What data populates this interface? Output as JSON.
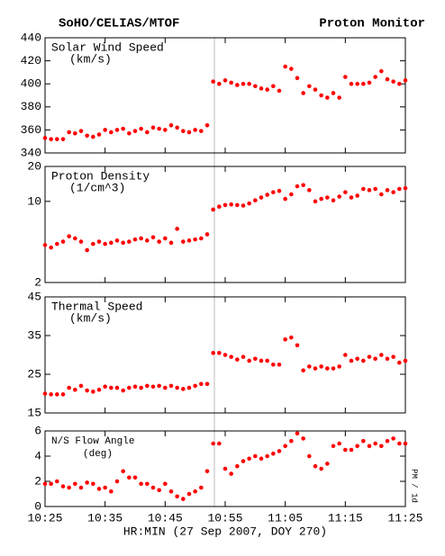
{
  "header_left": "SoHO/CELIAS/MTOF",
  "header_right": "Proton Monitor",
  "xlabel": "HR:MIN (27 Sep 2007, DOY 270)",
  "side_note": "PM / 1d",
  "chart_data": [
    {
      "type": "scatter",
      "title": "Solar Wind Speed",
      "unit": "(km/s)",
      "color": "#ff0000",
      "x": [
        "10:25",
        "10:26",
        "10:27",
        "10:28",
        "10:29",
        "10:30",
        "10:31",
        "10:32",
        "10:33",
        "10:34",
        "10:35",
        "10:36",
        "10:37",
        "10:38",
        "10:39",
        "10:40",
        "10:41",
        "10:42",
        "10:43",
        "10:44",
        "10:45",
        "10:46",
        "10:47",
        "10:48",
        "10:49",
        "10:50",
        "10:51",
        "10:52",
        "10:53",
        "10:54",
        "10:55",
        "10:56",
        "10:57",
        "10:58",
        "10:59",
        "11:00",
        "11:01",
        "11:02",
        "11:03",
        "11:04",
        "11:05",
        "11:06",
        "11:07",
        "11:08",
        "11:09",
        "11:10",
        "11:11",
        "11:12",
        "11:13",
        "11:14",
        "11:15",
        "11:16",
        "11:17",
        "11:18",
        "11:19",
        "11:20",
        "11:21",
        "11:22",
        "11:23",
        "11:24",
        "11:25"
      ],
      "values": [
        353,
        352,
        352,
        352,
        358,
        357,
        359,
        355,
        354,
        356,
        360,
        358,
        360,
        361,
        357,
        359,
        361,
        358,
        362,
        361,
        360,
        364,
        362,
        359,
        358,
        360,
        359,
        364,
        402,
        400,
        403,
        401,
        399,
        400,
        400,
        398,
        396,
        395,
        398,
        394,
        415,
        413,
        405,
        392,
        398,
        395,
        390,
        388,
        392,
        388,
        406,
        400,
        400,
        400,
        401,
        406,
        411,
        404,
        402,
        400,
        403
      ],
      "xlim": [
        "10:25",
        "11:25"
      ],
      "xticks": [
        "10:25",
        "10:35",
        "10:45",
        "10:55",
        "11:05",
        "11:15",
        "11:25"
      ],
      "ylim": [
        340,
        440
      ],
      "yticks": [
        340,
        360,
        380,
        400,
        420,
        440
      ]
    },
    {
      "type": "scatter",
      "title": "Proton Density",
      "unit": "(1/cm^3)",
      "color": "#ff0000",
      "log": true,
      "x": [
        "10:25",
        "10:26",
        "10:27",
        "10:28",
        "10:29",
        "10:30",
        "10:31",
        "10:32",
        "10:33",
        "10:34",
        "10:35",
        "10:36",
        "10:37",
        "10:38",
        "10:39",
        "10:40",
        "10:41",
        "10:42",
        "10:43",
        "10:44",
        "10:45",
        "10:46",
        "10:47",
        "10:48",
        "10:49",
        "10:50",
        "10:51",
        "10:52",
        "10:53",
        "10:54",
        "10:55",
        "10:56",
        "10:57",
        "10:58",
        "10:59",
        "11:00",
        "11:01",
        "11:02",
        "11:03",
        "11:04",
        "11:05",
        "11:06",
        "11:07",
        "11:08",
        "11:09",
        "11:10",
        "11:11",
        "11:12",
        "11:13",
        "11:14",
        "11:15",
        "11:16",
        "11:17",
        "11:18",
        "11:19",
        "11:20",
        "11:21",
        "11:22",
        "11:23",
        "11:24",
        "11:25"
      ],
      "values": [
        4.2,
        4.0,
        4.3,
        4.5,
        5.0,
        4.8,
        4.5,
        3.8,
        4.3,
        4.5,
        4.3,
        4.4,
        4.6,
        4.4,
        4.5,
        4.7,
        4.8,
        4.6,
        4.9,
        4.5,
        4.8,
        4.4,
        5.8,
        4.5,
        4.6,
        4.7,
        4.8,
        5.2,
        8.5,
        9.0,
        9.3,
        9.4,
        9.3,
        9.2,
        9.6,
        10.2,
        10.8,
        11.4,
        12.0,
        12.3,
        10.5,
        11.5,
        13.5,
        13.8,
        12.5,
        10.0,
        10.5,
        10.8,
        10.2,
        11.0,
        12.0,
        10.8,
        11.2,
        12.8,
        12.5,
        12.8,
        11.5,
        12.5,
        12.0,
        12.8,
        13.0
      ],
      "xlim": [
        "10:25",
        "11:25"
      ],
      "xticks": [
        "10:25",
        "10:35",
        "10:45",
        "10:55",
        "11:05",
        "11:15",
        "11:25"
      ],
      "ylim": [
        2,
        20
      ],
      "yticks": [
        2,
        10,
        20
      ]
    },
    {
      "type": "scatter",
      "title": "Thermal Speed",
      "unit": "(km/s)",
      "color": "#ff0000",
      "x": [
        "10:25",
        "10:26",
        "10:27",
        "10:28",
        "10:29",
        "10:30",
        "10:31",
        "10:32",
        "10:33",
        "10:34",
        "10:35",
        "10:36",
        "10:37",
        "10:38",
        "10:39",
        "10:40",
        "10:41",
        "10:42",
        "10:43",
        "10:44",
        "10:45",
        "10:46",
        "10:47",
        "10:48",
        "10:49",
        "10:50",
        "10:51",
        "10:52",
        "10:53",
        "10:54",
        "10:55",
        "10:56",
        "10:57",
        "10:58",
        "10:59",
        "11:00",
        "11:01",
        "11:02",
        "11:03",
        "11:04",
        "11:05",
        "11:06",
        "11:07",
        "11:08",
        "11:09",
        "11:10",
        "11:11",
        "11:12",
        "11:13",
        "11:14",
        "11:15",
        "11:16",
        "11:17",
        "11:18",
        "11:19",
        "11:20",
        "11:21",
        "11:22",
        "11:23",
        "11:24",
        "11:25"
      ],
      "values": [
        20,
        19.8,
        19.8,
        19.8,
        21.5,
        21,
        22,
        20.8,
        20.5,
        21,
        21.8,
        21.5,
        21.5,
        20.8,
        21.5,
        21.8,
        21.5,
        22,
        21.8,
        22,
        21.5,
        22,
        21.5,
        21.2,
        21.5,
        22,
        22.5,
        22.5,
        30.5,
        30.5,
        30,
        29.5,
        28.8,
        29.5,
        28.5,
        29,
        28.5,
        28.5,
        27.5,
        27.5,
        34,
        34.5,
        32.5,
        26,
        27,
        26.5,
        27,
        26.5,
        26.5,
        27,
        30,
        28.5,
        29,
        28.5,
        29.5,
        29,
        30,
        29,
        29.5,
        28,
        28.5
      ],
      "xlim": [
        "10:25",
        "11:25"
      ],
      "xticks": [
        "10:25",
        "10:35",
        "10:45",
        "10:55",
        "11:05",
        "11:15",
        "11:25"
      ],
      "ylim": [
        15,
        45
      ],
      "yticks": [
        15,
        25,
        35,
        45
      ]
    },
    {
      "type": "scatter",
      "title": "N/S Flow Angle",
      "unit": "(deg)",
      "color": "#ff0000",
      "x": [
        "10:25",
        "10:26",
        "10:27",
        "10:28",
        "10:29",
        "10:30",
        "10:31",
        "10:32",
        "10:33",
        "10:34",
        "10:35",
        "10:36",
        "10:37",
        "10:38",
        "10:39",
        "10:40",
        "10:41",
        "10:42",
        "10:43",
        "10:44",
        "10:45",
        "10:46",
        "10:47",
        "10:48",
        "10:49",
        "10:50",
        "10:51",
        "10:52",
        "10:53",
        "10:54",
        "10:55",
        "10:56",
        "10:57",
        "10:58",
        "10:59",
        "11:00",
        "11:01",
        "11:02",
        "11:03",
        "11:04",
        "11:05",
        "11:06",
        "11:07",
        "11:08",
        "11:09",
        "11:10",
        "11:11",
        "11:12",
        "11:13",
        "11:14",
        "11:15",
        "11:16",
        "11:17",
        "11:18",
        "11:19",
        "11:20",
        "11:21",
        "11:22",
        "11:23",
        "11:24",
        "11:25"
      ],
      "values": [
        1.8,
        1.8,
        2.0,
        1.6,
        1.5,
        1.8,
        1.5,
        1.9,
        1.8,
        1.4,
        1.5,
        1.2,
        2.0,
        2.8,
        2.3,
        2.3,
        1.8,
        1.8,
        1.5,
        1.3,
        1.8,
        1.2,
        0.8,
        0.6,
        1.0,
        1.2,
        1.5,
        2.8,
        5.0,
        5.0,
        3.0,
        2.6,
        3.2,
        3.6,
        3.8,
        4.0,
        3.8,
        4.0,
        4.2,
        4.4,
        4.8,
        5.2,
        5.8,
        5.4,
        4.0,
        3.2,
        3.0,
        3.4,
        4.8,
        5.0,
        4.5,
        4.5,
        4.8,
        5.2,
        4.8,
        5.0,
        4.8,
        5.2,
        5.4,
        5.0,
        5.0
      ],
      "xlim": [
        "10:25",
        "11:25"
      ],
      "xticks": [
        "10:25",
        "10:35",
        "10:45",
        "10:55",
        "11:05",
        "11:15",
        "11:25"
      ],
      "ylim": [
        0,
        6
      ],
      "yticks": [
        0,
        2,
        4,
        6
      ]
    }
  ]
}
